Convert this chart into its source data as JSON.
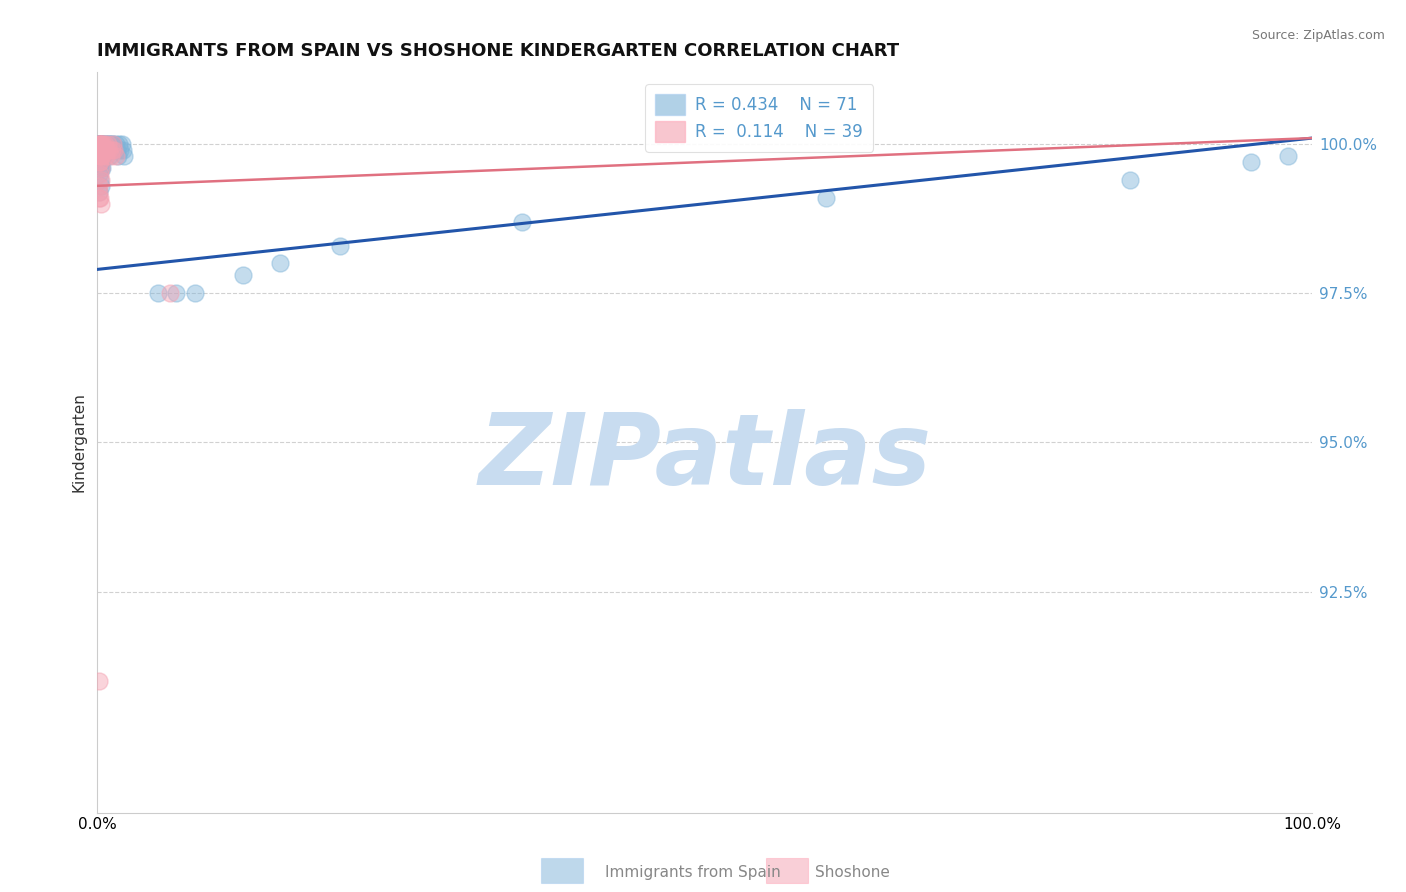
{
  "title": "IMMIGRANTS FROM SPAIN VS SHOSHONE KINDERGARTEN CORRELATION CHART",
  "source_text": "Source: ZipAtlas.com",
  "ylabel": "Kindergarten",
  "xlim": [
    0.0,
    1.0
  ],
  "ylim": [
    0.888,
    1.012
  ],
  "yticks": [
    0.925,
    0.95,
    0.975,
    1.0
  ],
  "ytick_labels": [
    "92.5%",
    "95.0%",
    "97.5%",
    "100.0%"
  ],
  "xticks": [
    0.0,
    1.0
  ],
  "xtick_labels": [
    "0.0%",
    "100.0%"
  ],
  "legend_r1": "R = 0.434",
  "legend_n1": "N = 71",
  "legend_r2": "R = 0.114",
  "legend_n2": "N = 39",
  "series1_label": "Immigrants from Spain",
  "series2_label": "Shoshone",
  "color1": "#7EB3D8",
  "color2": "#F4A0B0",
  "trendline1_color": "#2255AA",
  "trendline2_color": "#E07080",
  "background_color": "#FFFFFF",
  "watermark": "ZIPatlas",
  "watermark_color": "#C8DCF0",
  "series1_x": [
    0.001,
    0.001,
    0.001,
    0.001,
    0.001,
    0.002,
    0.002,
    0.002,
    0.002,
    0.002,
    0.002,
    0.002,
    0.003,
    0.003,
    0.003,
    0.003,
    0.003,
    0.003,
    0.004,
    0.004,
    0.004,
    0.004,
    0.005,
    0.005,
    0.005,
    0.006,
    0.006,
    0.007,
    0.007,
    0.008,
    0.008,
    0.009,
    0.009,
    0.01,
    0.01,
    0.01,
    0.011,
    0.011,
    0.012,
    0.012,
    0.013,
    0.014,
    0.015,
    0.016,
    0.017,
    0.018,
    0.019,
    0.02,
    0.021,
    0.022,
    0.001,
    0.002,
    0.003,
    0.001,
    0.002,
    0.003,
    0.004,
    0.002,
    0.003,
    0.001,
    0.05,
    0.065,
    0.08,
    0.12,
    0.15,
    0.2,
    0.35,
    0.6,
    0.85,
    0.95,
    0.98
  ],
  "series1_y": [
    1.0,
    1.0,
    1.0,
    0.999,
    0.998,
    1.0,
    1.0,
    0.999,
    0.998,
    0.997,
    1.0,
    0.999,
    1.0,
    1.0,
    0.999,
    0.998,
    0.997,
    1.0,
    1.0,
    0.999,
    0.998,
    1.0,
    1.0,
    0.999,
    0.998,
    1.0,
    0.999,
    1.0,
    0.999,
    1.0,
    0.999,
    1.0,
    0.999,
    1.0,
    0.999,
    0.998,
    1.0,
    0.999,
    1.0,
    0.999,
    1.0,
    0.999,
    1.0,
    0.999,
    0.998,
    1.0,
    0.999,
    1.0,
    0.999,
    0.998,
    0.997,
    0.997,
    0.996,
    0.995,
    0.996,
    0.997,
    0.996,
    0.994,
    0.993,
    0.992,
    0.975,
    0.975,
    0.975,
    0.978,
    0.98,
    0.983,
    0.987,
    0.991,
    0.994,
    0.997,
    0.998
  ],
  "series2_x": [
    0.001,
    0.001,
    0.001,
    0.001,
    0.002,
    0.002,
    0.002,
    0.002,
    0.003,
    0.003,
    0.003,
    0.004,
    0.004,
    0.004,
    0.005,
    0.005,
    0.006,
    0.006,
    0.007,
    0.008,
    0.009,
    0.01,
    0.011,
    0.012,
    0.013,
    0.014,
    0.015,
    0.001,
    0.002,
    0.003,
    0.002,
    0.003,
    0.001,
    0.06,
    0.001,
    0.002,
    0.003,
    0.001,
    0.001
  ],
  "series2_y": [
    1.0,
    1.0,
    0.999,
    0.998,
    1.0,
    0.999,
    0.998,
    1.0,
    1.0,
    0.999,
    0.998,
    1.0,
    0.999,
    0.998,
    1.0,
    0.999,
    1.0,
    0.999,
    0.998,
    0.999,
    1.0,
    0.999,
    0.998,
    0.999,
    1.0,
    0.999,
    0.998,
    0.997,
    0.997,
    0.996,
    0.995,
    0.994,
    0.993,
    0.975,
    0.992,
    0.991,
    0.99,
    0.991,
    0.91
  ],
  "trendline1_x": [
    0.0,
    1.0
  ],
  "trendline1_y": [
    0.979,
    1.001
  ],
  "trendline2_x": [
    0.0,
    1.0
  ],
  "trendline2_y": [
    0.993,
    1.001
  ]
}
